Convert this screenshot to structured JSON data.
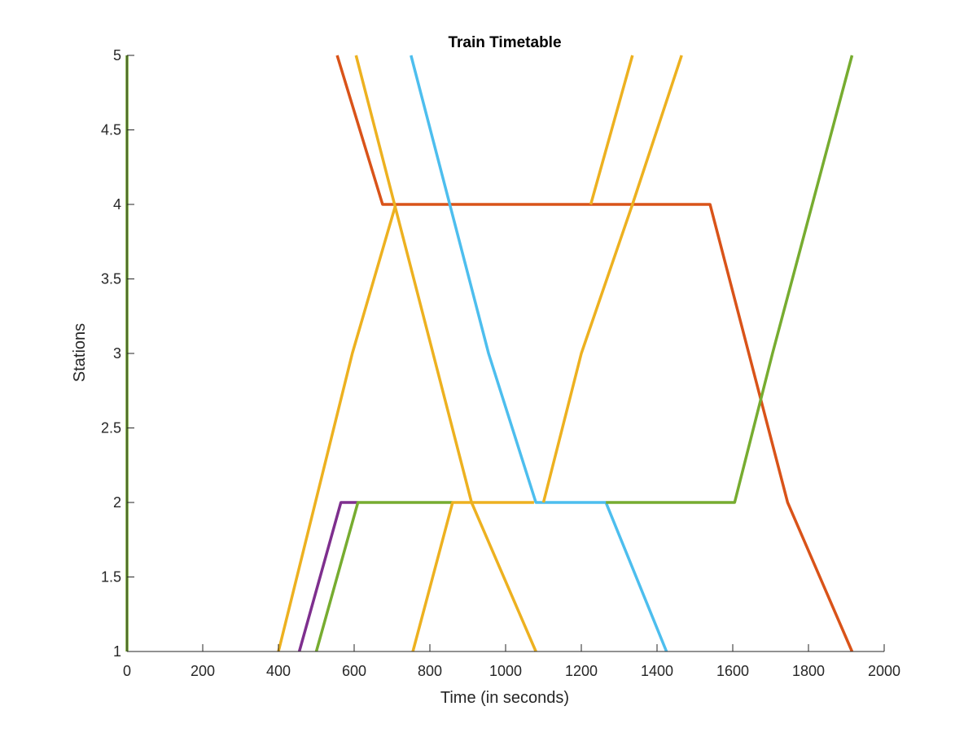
{
  "chart_data": {
    "type": "line",
    "title": "Train Timetable",
    "xlabel": "Time (in seconds)",
    "ylabel": "Stations",
    "xlim": [
      0,
      2000
    ],
    "ylim": [
      1,
      5
    ],
    "xticks": [
      0,
      200,
      400,
      600,
      800,
      1000,
      1200,
      1400,
      1600,
      1800,
      2000
    ],
    "xtick_labels": [
      "0",
      "200",
      "400",
      "600",
      "800",
      "1000",
      "1200",
      "1400",
      "1600",
      "1800",
      "2000"
    ],
    "yticks": [
      1,
      1.5,
      2,
      2.5,
      3,
      3.5,
      4,
      4.5,
      5
    ],
    "ytick_labels": [
      "1",
      "1.5",
      "2",
      "2.5",
      "3",
      "3.5",
      "4",
      "4.5",
      "5"
    ],
    "grid": false,
    "box": "off",
    "series": [
      {
        "color": "#EDB120",
        "x": [
          400,
          595,
          710
        ],
        "y": [
          1,
          3,
          4
        ]
      },
      {
        "color": "#7E2F8E",
        "x": [
          455,
          565,
          610
        ],
        "y": [
          1,
          2,
          2
        ]
      },
      {
        "color": "#77AC30",
        "x": [
          500,
          610,
          860
        ],
        "y": [
          1,
          2,
          2
        ]
      },
      {
        "color": "#EDB120",
        "x": [
          755,
          860,
          1075
        ],
        "y": [
          1,
          2,
          2
        ]
      },
      {
        "color": "#D95319",
        "x": [
          555,
          675,
          1540,
          1745,
          1915
        ],
        "y": [
          5,
          4,
          4,
          2,
          1
        ]
      },
      {
        "color": "#EDB120",
        "x": [
          605,
          910,
          1080
        ],
        "y": [
          5,
          2,
          1
        ]
      },
      {
        "color": "#4DBEEE",
        "x": [
          750,
          955,
          1080,
          1265,
          1425
        ],
        "y": [
          5,
          3,
          2,
          2,
          1
        ]
      },
      {
        "color": "#EDB120",
        "x": [
          1100,
          1200,
          1335,
          1465
        ],
        "y": [
          2,
          3,
          4,
          5
        ]
      },
      {
        "color": "#EDB120",
        "x": [
          1225,
          1335
        ],
        "y": [
          4,
          5
        ]
      },
      {
        "color": "#77AC30",
        "x": [
          1265,
          1605,
          1705,
          1915
        ],
        "y": [
          2,
          2,
          3,
          5
        ]
      },
      {
        "color": "#77AC30",
        "x": [
          0,
          0
        ],
        "y": [
          1,
          5
        ]
      }
    ]
  }
}
